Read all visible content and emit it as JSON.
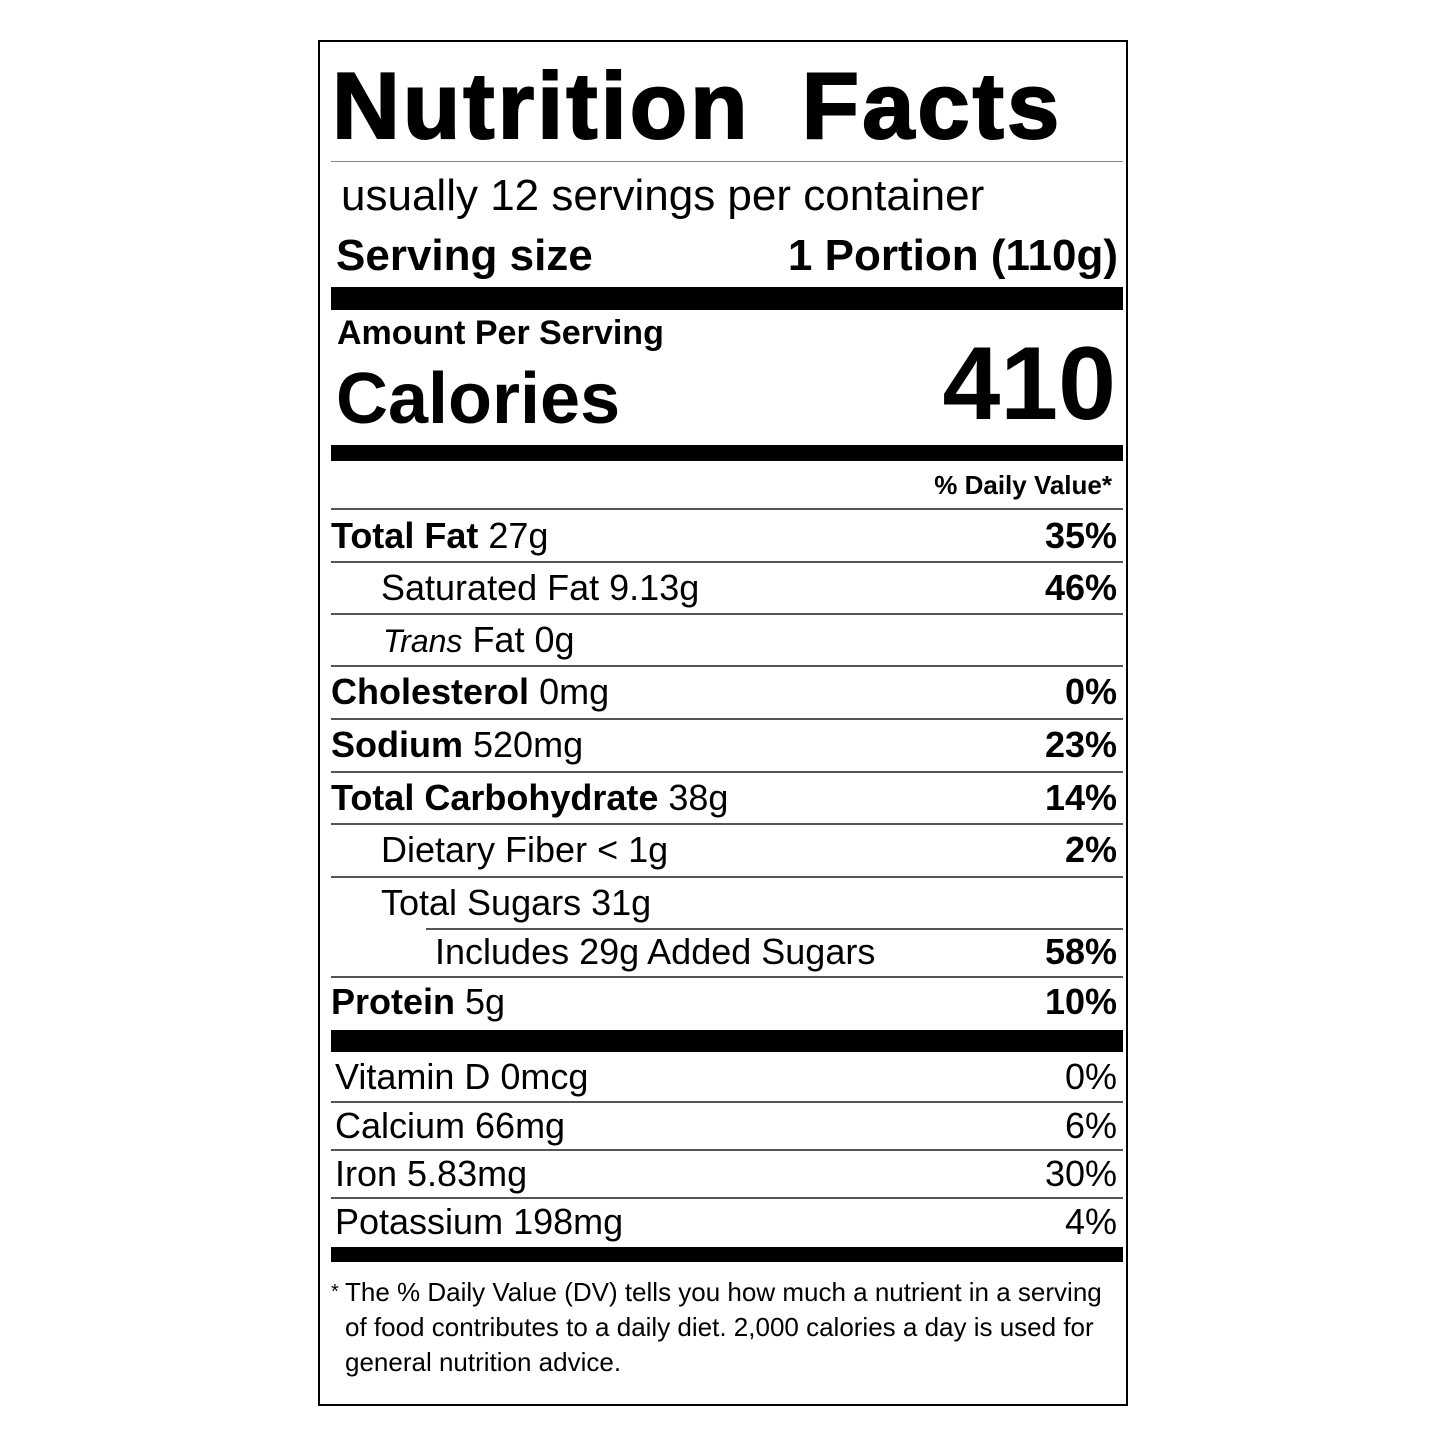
{
  "title": "Nutrition Facts",
  "servings_per_container": "usually 12 servings per container",
  "serving_size": {
    "label": "Serving size",
    "value": "1 Portion (110g)"
  },
  "amount_per_serving": "Amount Per Serving",
  "calories": {
    "label": "Calories",
    "value": "410"
  },
  "daily_value_header": "% Daily Value*",
  "nutrients": [
    {
      "name": "Total Fat",
      "amount": "27g",
      "dv": "35%"
    },
    {
      "name": "Saturated Fat",
      "amount": "9.13g",
      "dv": "46%"
    },
    {
      "name_italic": "Trans",
      "name": "Fat",
      "amount": "0g",
      "dv": ""
    },
    {
      "name": "Cholesterol",
      "amount": "0mg",
      "dv": "0%"
    },
    {
      "name": "Sodium",
      "amount": "520mg",
      "dv": "23%"
    },
    {
      "name": "Total Carbohydrate",
      "amount": "38g",
      "dv": "14%"
    },
    {
      "name": "Dietary Fiber",
      "amount": "< 1g",
      "dv": "2%"
    },
    {
      "name": "Total Sugars",
      "amount": "31g",
      "dv": ""
    },
    {
      "text": "Includes 29g Added Sugars",
      "dv": "58%"
    },
    {
      "name": "Protein",
      "amount": "5g",
      "dv": "10%"
    }
  ],
  "vitamins": [
    {
      "text": "Vitamin D 0mcg",
      "dv": "0%"
    },
    {
      "text": "Calcium 66mg",
      "dv": "6%"
    },
    {
      "text": "Iron 5.83mg",
      "dv": "30%"
    },
    {
      "text": "Potassium 198mg",
      "dv": "4%"
    }
  ],
  "footnote": {
    "star": "*",
    "text": "The % Daily Value (DV) tells you how much a nutrient in a serving of food contributes to a daily diet. 2,000 calories a day is used for general nutrition advice."
  }
}
